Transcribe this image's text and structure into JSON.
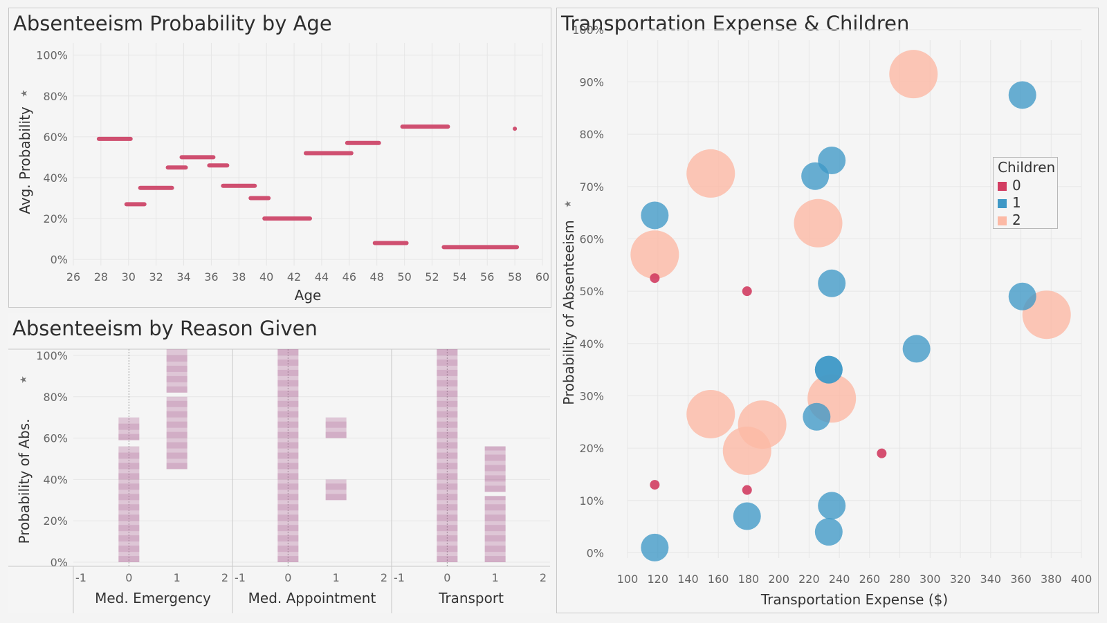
{
  "colors": {
    "age_line": "#cf4f70",
    "reason_block": "#a95a8e",
    "children_0": "#d23d62",
    "children_1": "#3f98c6",
    "children_2": "#fcb9a5",
    "grid": "#e6e6e6",
    "tick_text": "#666666"
  },
  "panels": {
    "age_title": "Absenteeism Probability by Age",
    "reason_title": "Absenteeism by Reason Given",
    "transport_title": "Transportation Expense & Children"
  },
  "chart_data": [
    {
      "type": "line",
      "id": "age",
      "title": "Absenteeism Probability by Age",
      "xlabel": "Age",
      "ylabel": "Avg. Probability",
      "ylabel_icon": "pin-icon",
      "xlim": [
        26,
        60
      ],
      "ylim": [
        0,
        100
      ],
      "x_ticks": [
        26,
        28,
        30,
        32,
        34,
        36,
        38,
        40,
        42,
        44,
        46,
        48,
        50,
        52,
        54,
        56,
        58,
        60
      ],
      "y_ticks": [
        0,
        20,
        40,
        60,
        80,
        100
      ],
      "y_tick_labels": [
        "0%",
        "20%",
        "40%",
        "60%",
        "80%",
        "100%"
      ],
      "grid": true,
      "segments": [
        {
          "x_start": 28,
          "x_end": 30,
          "y": 59
        },
        {
          "x_start": 30,
          "x_end": 31,
          "y": 27
        },
        {
          "x_start": 31,
          "x_end": 33,
          "y": 35
        },
        {
          "x_start": 33,
          "x_end": 34,
          "y": 45
        },
        {
          "x_start": 34,
          "x_end": 36,
          "y": 50
        },
        {
          "x_start": 36,
          "x_end": 37,
          "y": 46
        },
        {
          "x_start": 37,
          "x_end": 39,
          "y": 36
        },
        {
          "x_start": 39,
          "x_end": 40,
          "y": 30
        },
        {
          "x_start": 40,
          "x_end": 43,
          "y": 20
        },
        {
          "x_start": 43,
          "x_end": 46,
          "y": 52
        },
        {
          "x_start": 46,
          "x_end": 48,
          "y": 57
        },
        {
          "x_start": 48,
          "x_end": 50,
          "y": 8
        },
        {
          "x_start": 50,
          "x_end": 53,
          "y": 65
        },
        {
          "x_start": 53,
          "x_end": 58,
          "y": 6
        }
      ],
      "points": [
        {
          "x": 58,
          "y": 64
        }
      ]
    },
    {
      "type": "heatmap",
      "id": "reason",
      "title": "Absenteeism by Reason Given",
      "ylabel": "Probability of Abs.",
      "ylabel_icon": "pin-icon",
      "ylim": [
        -2,
        103
      ],
      "y_ticks": [
        0,
        20,
        40,
        60,
        80,
        100
      ],
      "y_tick_labels": [
        "0%",
        "20%",
        "40%",
        "60%",
        "80%",
        "100%"
      ],
      "xlim": [
        -1,
        2
      ],
      "x_ticks": [
        -1,
        0,
        1,
        2
      ],
      "grid": true,
      "facets": [
        {
          "label": "Med. Emergency",
          "columns": [
            {
              "x": 0,
              "ranges": [
                [
                  0,
                  56
                ],
                [
                  59,
                  70
                ]
              ]
            },
            {
              "x": 1,
              "ranges": [
                [
                  45,
                  80
                ],
                [
                  82,
                  103
                ]
              ]
            }
          ]
        },
        {
          "label": "Med. Appointment",
          "columns": [
            {
              "x": 0,
              "ranges": [
                [
                  0,
                  103
                ]
              ]
            },
            {
              "x": 1,
              "ranges": [
                [
                  30,
                  40
                ],
                [
                  60,
                  70
                ]
              ]
            }
          ]
        },
        {
          "label": "Transport",
          "columns": [
            {
              "x": 0,
              "ranges": [
                [
                  0,
                  103
                ]
              ]
            },
            {
              "x": 1,
              "ranges": [
                [
                  0,
                  32
                ],
                [
                  34,
                  56
                ]
              ]
            }
          ]
        }
      ]
    },
    {
      "type": "scatter",
      "id": "transport",
      "title": "Transportation Expense & Children",
      "xlabel": "Transportation Expense ($)",
      "ylabel": "Probability of Absenteeism",
      "ylabel_icon": "pin-icon",
      "xlim": [
        100,
        400
      ],
      "ylim": [
        -1,
        98
      ],
      "x_ticks": [
        100,
        120,
        140,
        160,
        180,
        200,
        220,
        240,
        260,
        280,
        300,
        320,
        340,
        360,
        380,
        400
      ],
      "y_ticks": [
        0,
        10,
        20,
        30,
        40,
        50,
        60,
        70,
        80,
        90,
        100
      ],
      "y_tick_labels": [
        "0%",
        "10%",
        "20%",
        "30%",
        "40%",
        "50%",
        "60%",
        "70%",
        "80%",
        "90%",
        "100%"
      ],
      "grid": true,
      "legend": {
        "title": "Children",
        "position": "right",
        "entries": [
          "0",
          "1",
          "2"
        ]
      },
      "series": [
        {
          "name": "0",
          "points": [
            {
              "x": 118,
              "y": 52.5
            },
            {
              "x": 179,
              "y": 50
            },
            {
              "x": 118,
              "y": 13
            },
            {
              "x": 179,
              "y": 12
            },
            {
              "x": 268,
              "y": 19
            }
          ]
        },
        {
          "name": "1",
          "points": [
            {
              "x": 118,
              "y": 1
            },
            {
              "x": 118,
              "y": 64.5
            },
            {
              "x": 179,
              "y": 7
            },
            {
              "x": 224,
              "y": 72
            },
            {
              "x": 235,
              "y": 75
            },
            {
              "x": 235,
              "y": 51.5
            },
            {
              "x": 233,
              "y": 35
            },
            {
              "x": 233,
              "y": 35
            },
            {
              "x": 225,
              "y": 26
            },
            {
              "x": 235,
              "y": 9
            },
            {
              "x": 233,
              "y": 4
            },
            {
              "x": 291,
              "y": 39
            },
            {
              "x": 361,
              "y": 87.5
            },
            {
              "x": 361,
              "y": 49
            }
          ]
        },
        {
          "name": "2",
          "points": [
            {
              "x": 118,
              "y": 57
            },
            {
              "x": 155,
              "y": 72.5
            },
            {
              "x": 155,
              "y": 26.5
            },
            {
              "x": 179,
              "y": 19.5
            },
            {
              "x": 189,
              "y": 24.5
            },
            {
              "x": 226,
              "y": 63
            },
            {
              "x": 235,
              "y": 29.5
            },
            {
              "x": 289,
              "y": 91.5
            },
            {
              "x": 377,
              "y": 45.5
            }
          ]
        }
      ]
    }
  ]
}
